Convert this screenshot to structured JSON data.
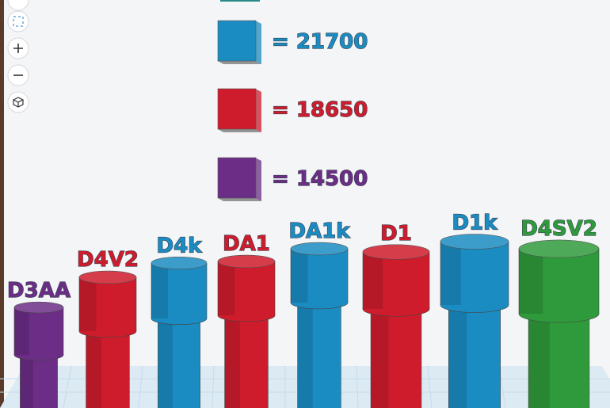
{
  "legend": [
    {
      "label": "= 21700",
      "color": "#1a8cc2"
    },
    {
      "label": "= 18650",
      "color": "#cf1c2c"
    },
    {
      "label": "= 14500",
      "color": "#6b2d86"
    }
  ],
  "cylinders": [
    {
      "label": "D3AA",
      "color": "#6b2d86"
    },
    {
      "label": "D4V2",
      "color": "#cf1c2c"
    },
    {
      "label": "D4k",
      "color": "#1a8cc2"
    },
    {
      "label": "DA1",
      "color": "#cf1c2c"
    },
    {
      "label": "DA1k",
      "color": "#1a8cc2"
    },
    {
      "label": "D1",
      "color": "#cf1c2c"
    },
    {
      "label": "D1k",
      "color": "#1a8cc2"
    },
    {
      "label": "D4SV2",
      "color": "#2f9a3c"
    }
  ]
}
